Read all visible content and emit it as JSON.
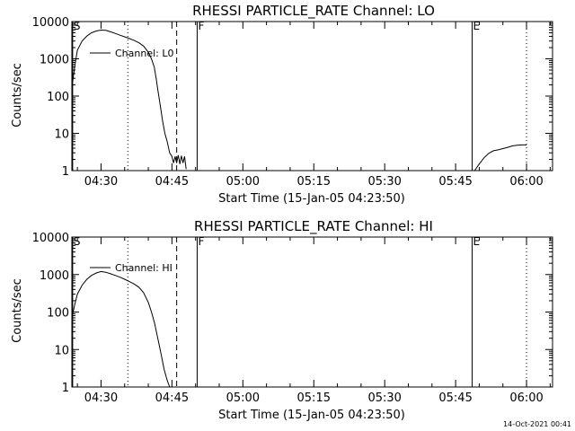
{
  "chart_data": [
    {
      "type": "line",
      "title": "RHESSI PARTICLE_RATE Channel: LO",
      "xlabel": "Start Time (15-Jan-05 04:23:50)",
      "ylabel": "Counts/sec",
      "x_unit": "UT time of 15-Jan-05",
      "x_range": [
        "04:23:50",
        "06:05:30"
      ],
      "ylim": [
        1,
        10000
      ],
      "y_scale": "log",
      "grid": false,
      "legend_position": "upper-left",
      "x_ticks": [
        "04:30",
        "04:45",
        "05:00",
        "05:15",
        "05:30",
        "05:45",
        "06:00"
      ],
      "y_ticks": [
        "1",
        "10",
        "100",
        "1000",
        "10000"
      ],
      "series": [
        {
          "name": "Channel: L0",
          "segments": [
            [
              [
                "04:23:50",
                170
              ],
              [
                "04:24:30",
                700
              ],
              [
                "04:25:00",
                1700
              ],
              [
                "04:26:00",
                3000
              ],
              [
                "04:27:00",
                4100
              ],
              [
                "04:28:00",
                5000
              ],
              [
                "04:29:00",
                5600
              ],
              [
                "04:30:00",
                5900
              ],
              [
                "04:31:00",
                5800
              ],
              [
                "04:32:00",
                5300
              ],
              [
                "04:33:00",
                4800
              ],
              [
                "04:34:00",
                4300
              ],
              [
                "04:35:00",
                3900
              ],
              [
                "04:36:00",
                3500
              ],
              [
                "04:37:00",
                3100
              ],
              [
                "04:38:00",
                2700
              ],
              [
                "04:39:00",
                2200
              ],
              [
                "04:40:00",
                1500
              ],
              [
                "04:40:40",
                1000
              ],
              [
                "04:41:15",
                600
              ],
              [
                "04:41:40",
                300
              ],
              [
                "04:42:00",
                150
              ],
              [
                "04:42:30",
                60
              ],
              [
                "04:43:00",
                22
              ],
              [
                "04:43:30",
                10
              ],
              [
                "04:44:00",
                6
              ],
              [
                "04:44:30",
                3
              ],
              [
                "04:45:00",
                2.4
              ],
              [
                "04:45:20",
                1.6
              ],
              [
                "04:45:40",
                2.4
              ],
              [
                "04:46:00",
                1.6
              ],
              [
                "04:46:20",
                2.6
              ],
              [
                "04:46:40",
                1.5
              ],
              [
                "04:47:00",
                2.5
              ],
              [
                "04:47:20",
                1.6
              ],
              [
                "04:47:40",
                2.4
              ],
              [
                "04:48:00",
                1.1
              ]
            ],
            [
              [
                "05:49:00",
                1.0
              ],
              [
                "05:50:00",
                1.5
              ],
              [
                "05:51:00",
                2.2
              ],
              [
                "05:52:00",
                2.9
              ],
              [
                "05:53:00",
                3.4
              ],
              [
                "05:54:00",
                3.6
              ],
              [
                "05:55:00",
                3.9
              ],
              [
                "05:56:00",
                4.2
              ],
              [
                "05:57:00",
                4.6
              ],
              [
                "05:58:00",
                4.8
              ],
              [
                "05:59:00",
                4.9
              ],
              [
                "06:00:00",
                4.9
              ]
            ]
          ]
        }
      ],
      "markers": [
        {
          "label": "S",
          "time": "04:24:00",
          "style": "solid"
        },
        {
          "label": "",
          "time": "04:35:40",
          "style": "dotted"
        },
        {
          "label": "",
          "time": "04:46:00",
          "style": "dashed"
        },
        {
          "label": "F",
          "time": "04:50:20",
          "style": "solid"
        },
        {
          "label": "E",
          "time": "05:48:30",
          "style": "solid"
        },
        {
          "label": "",
          "time": "06:00:00",
          "style": "dotted"
        }
      ]
    },
    {
      "type": "line",
      "title": "RHESSI PARTICLE_RATE Channel: HI",
      "xlabel": "Start Time (15-Jan-05 04:23:50)",
      "ylabel": "Counts/sec",
      "x_unit": "UT time of 15-Jan-05",
      "x_range": [
        "04:23:50",
        "06:05:30"
      ],
      "ylim": [
        1,
        10000
      ],
      "y_scale": "log",
      "grid": false,
      "legend_position": "upper-left",
      "x_ticks": [
        "04:30",
        "04:45",
        "05:00",
        "05:15",
        "05:30",
        "05:45",
        "06:00"
      ],
      "y_ticks": [
        "1",
        "10",
        "100",
        "1000",
        "10000"
      ],
      "series": [
        {
          "name": "Channel: HI",
          "segments": [
            [
              [
                "04:23:50",
                70
              ],
              [
                "04:24:30",
                170
              ],
              [
                "04:25:00",
                300
              ],
              [
                "04:26:00",
                520
              ],
              [
                "04:27:00",
                750
              ],
              [
                "04:28:00",
                950
              ],
              [
                "04:29:00",
                1100
              ],
              [
                "04:30:00",
                1200
              ],
              [
                "04:31:00",
                1150
              ],
              [
                "04:32:00",
                1050
              ],
              [
                "04:33:00",
                950
              ],
              [
                "04:34:00",
                850
              ],
              [
                "04:35:00",
                750
              ],
              [
                "04:36:00",
                650
              ],
              [
                "04:37:00",
                560
              ],
              [
                "04:38:00",
                460
              ],
              [
                "04:39:00",
                330
              ],
              [
                "04:40:00",
                180
              ],
              [
                "04:40:40",
                100
              ],
              [
                "04:41:20",
                50
              ],
              [
                "04:42:00",
                20
              ],
              [
                "04:42:40",
                8
              ],
              [
                "04:43:20",
                3
              ],
              [
                "04:44:00",
                1.5
              ],
              [
                "04:44:30",
                1.0
              ]
            ]
          ]
        }
      ],
      "markers": [
        {
          "label": "S",
          "time": "04:24:00",
          "style": "solid"
        },
        {
          "label": "",
          "time": "04:35:40",
          "style": "dotted"
        },
        {
          "label": "",
          "time": "04:46:00",
          "style": "dashed"
        },
        {
          "label": "F",
          "time": "04:50:20",
          "style": "solid"
        },
        {
          "label": "E",
          "time": "05:48:30",
          "style": "solid"
        },
        {
          "label": "",
          "time": "06:00:00",
          "style": "dotted"
        }
      ]
    }
  ],
  "footer": {
    "timestamp": "14-Oct-2021 00:41"
  }
}
